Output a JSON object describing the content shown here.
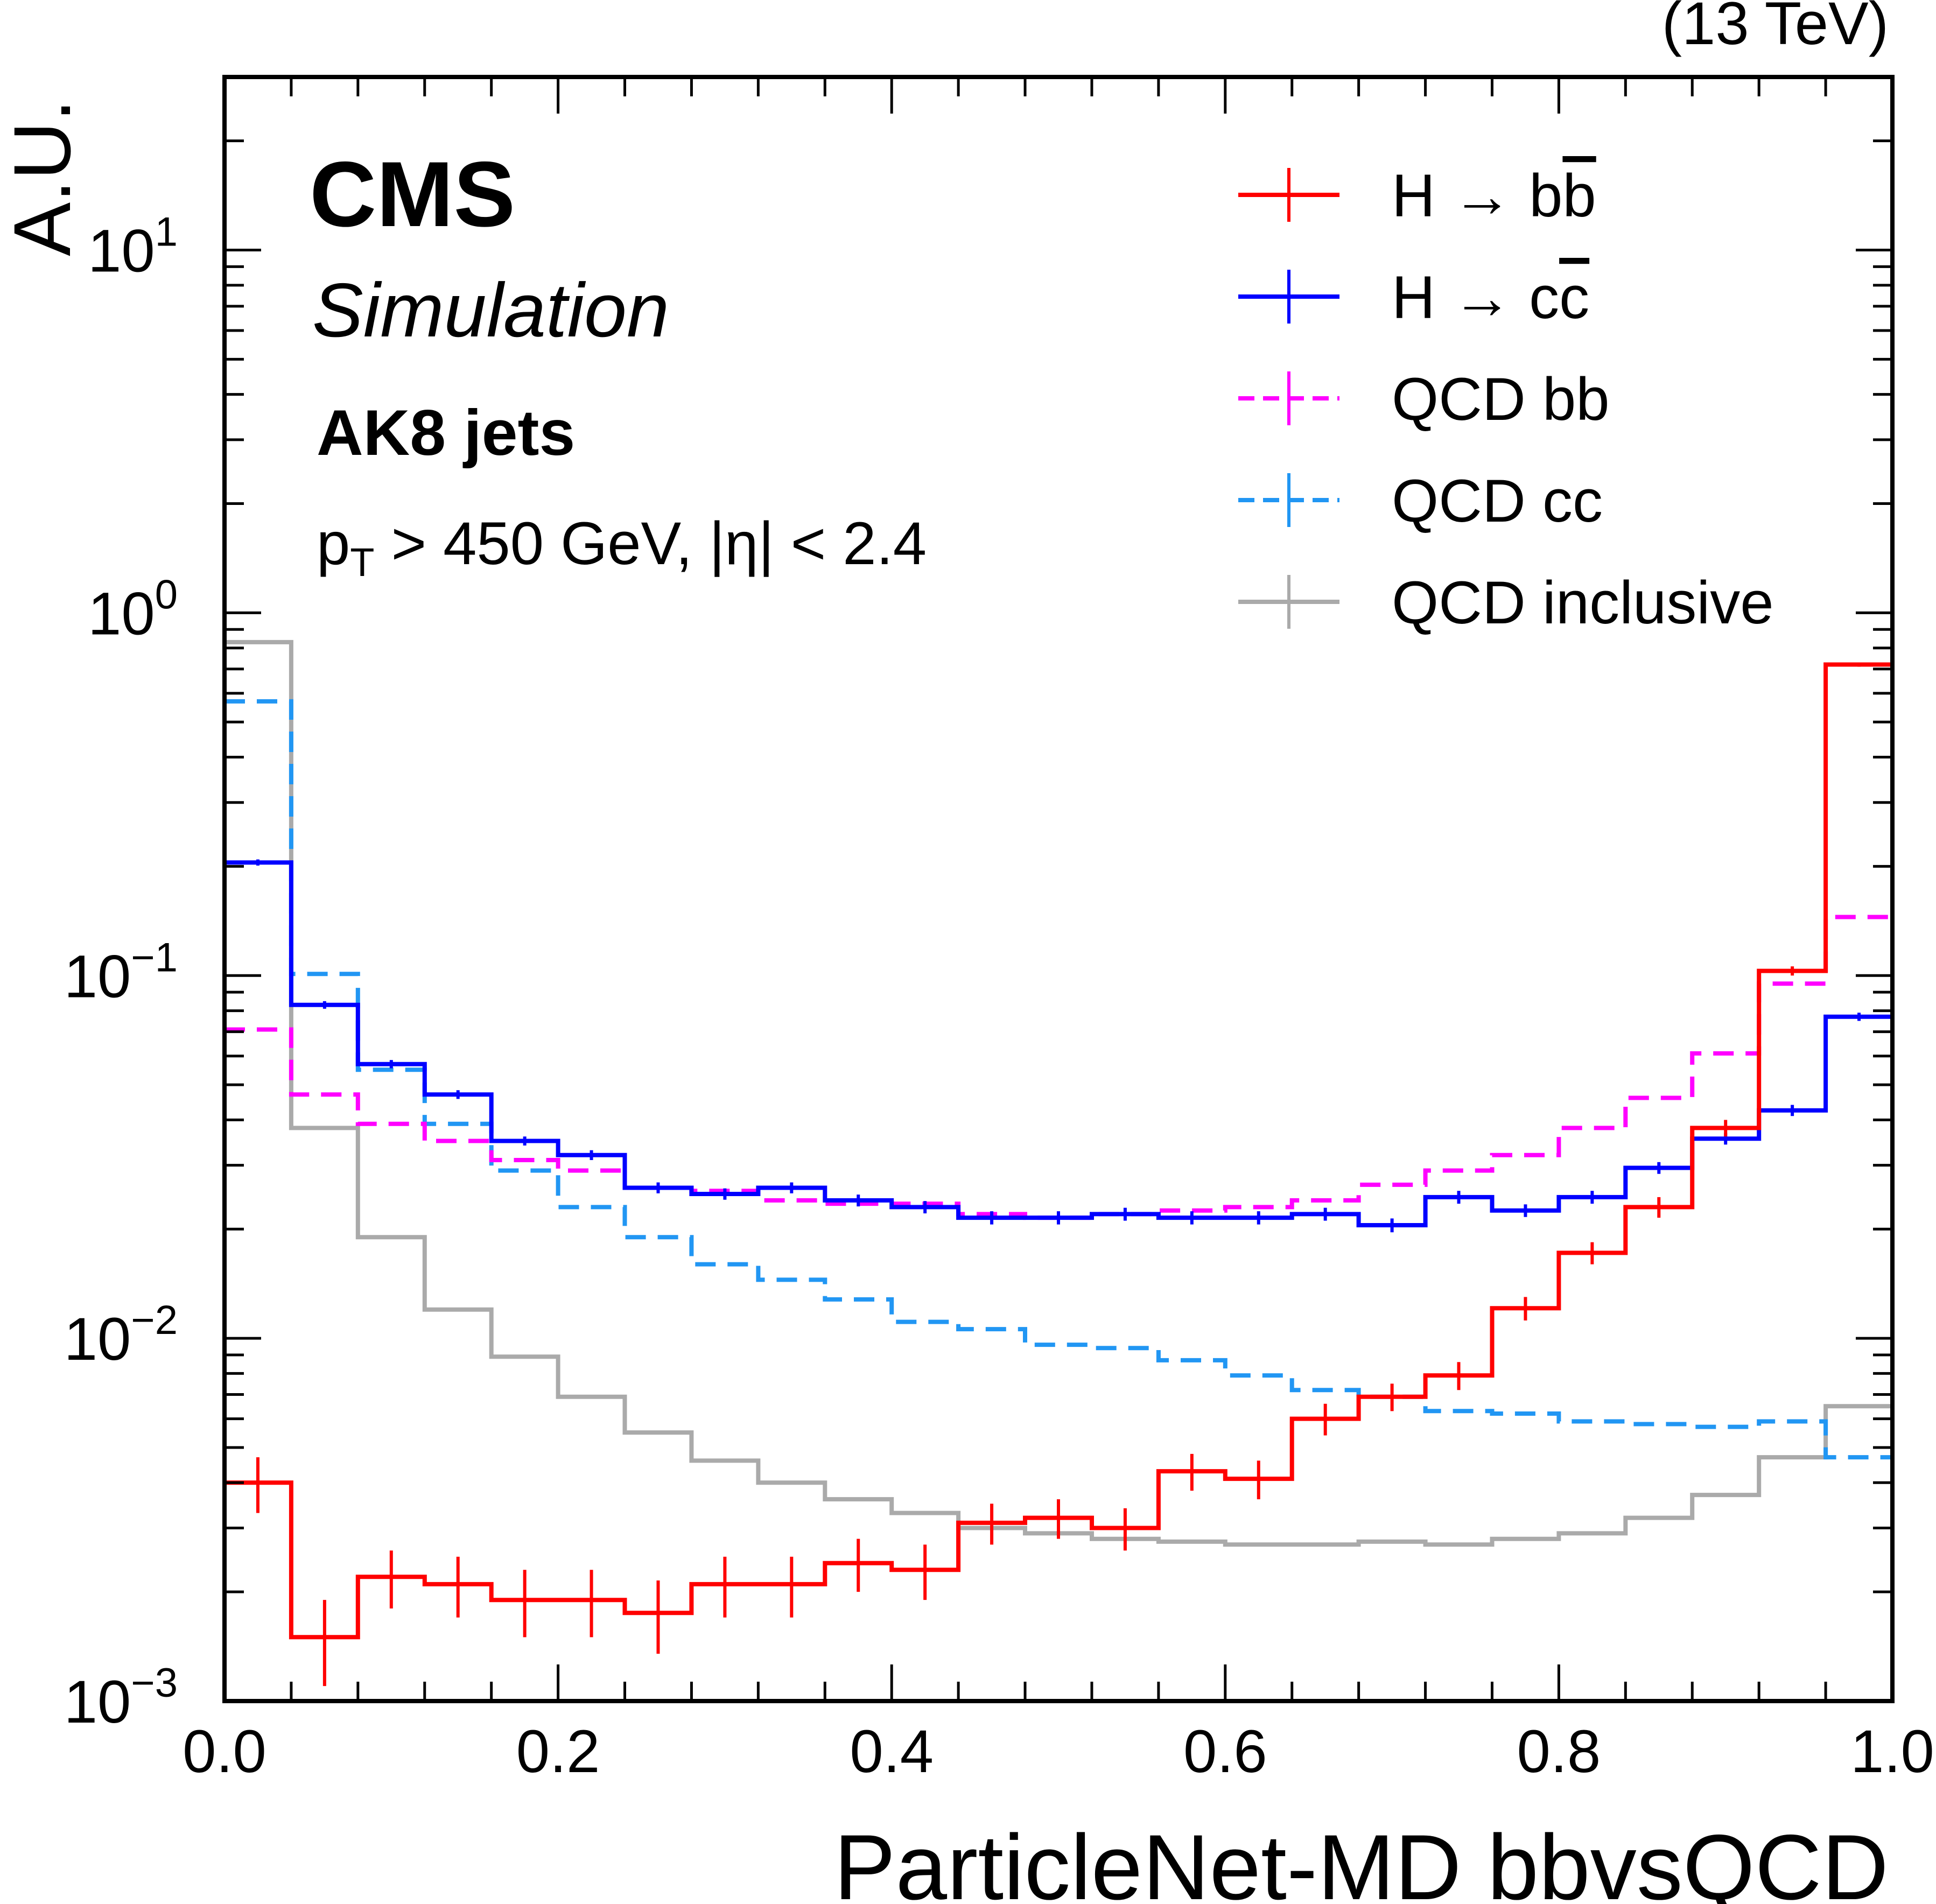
{
  "labels": {
    "energy": "(13 TeV)",
    "experiment": "CMS",
    "status": "Simulation",
    "jet_type": "AK8 jets",
    "selection_pt": "p",
    "selection_pt_sub": "T",
    "selection_rest": " > 450 GeV, |η| < 2.4"
  },
  "colors": {
    "hbb": "#ff0000",
    "hcc": "#0000ff",
    "qcdbb": "#ff00ff",
    "qcdcc": "#2196f3",
    "qcdincl": "#aaaaaa"
  },
  "chart_data": {
    "type": "histogram",
    "title": "",
    "xlabel": "ParticleNet-MD bbvsQCD",
    "ylabel": "A.U.",
    "xlim": [
      0.0,
      1.0
    ],
    "ylim": [
      0.001,
      30
    ],
    "yscale": "log",
    "x_tick_labels": [
      "0.0",
      "0.2",
      "0.4",
      "0.6",
      "0.8",
      "1.0"
    ],
    "y_tick_labels": [
      {
        "base": "10",
        "exp": "−3",
        "value": 0.001
      },
      {
        "base": "10",
        "exp": "−2",
        "value": 0.01
      },
      {
        "base": "10",
        "exp": "−1",
        "value": 0.1
      },
      {
        "base": "10",
        "exp": "0",
        "value": 1
      },
      {
        "base": "10",
        "exp": "1",
        "value": 10
      }
    ],
    "bin_edges": [
      0.0,
      0.04,
      0.08,
      0.12,
      0.16,
      0.2,
      0.24,
      0.28,
      0.32,
      0.36,
      0.4,
      0.44,
      0.48,
      0.52,
      0.56,
      0.6,
      0.64,
      0.68,
      0.72,
      0.76,
      0.8,
      0.84,
      0.88,
      0.92,
      0.96,
      1.0
    ],
    "legend_position": "top-right",
    "series": [
      {
        "key": "hbb",
        "name": "H → bb̅",
        "legend_base": "H → b",
        "legend_bar": "b",
        "style": "solid",
        "errorbars": true,
        "values": [
          0.004,
          0.0015,
          0.0022,
          0.0021,
          0.0019,
          0.0019,
          0.00175,
          0.0021,
          0.0021,
          0.0024,
          0.0023,
          0.0031,
          0.0032,
          0.003,
          0.0043,
          0.0041,
          0.006,
          0.0069,
          0.0079,
          0.0121,
          0.0172,
          0.023,
          0.038,
          0.103,
          0.72
        ],
        "errors": [
          0.0007,
          0.0004,
          0.0004,
          0.0004,
          0.0004,
          0.0004,
          0.0004,
          0.0004,
          0.0004,
          0.0004,
          0.0004,
          0.0004,
          0.0004,
          0.0004,
          0.0005,
          0.0005,
          0.0006,
          0.0006,
          0.0007,
          0.0009,
          0.0012,
          0.0015,
          0.002,
          0.003,
          0.01
        ]
      },
      {
        "key": "hcc",
        "name": "H → cc̅",
        "legend_base": "H → c",
        "legend_bar": "c",
        "style": "solid",
        "errorbars": true,
        "values": [
          0.205,
          0.083,
          0.057,
          0.047,
          0.035,
          0.032,
          0.026,
          0.025,
          0.026,
          0.024,
          0.023,
          0.0215,
          0.0215,
          0.022,
          0.0215,
          0.0215,
          0.022,
          0.0205,
          0.0245,
          0.0225,
          0.0245,
          0.0295,
          0.0355,
          0.0425,
          0.077
        ],
        "errors": [
          0.004,
          0.002,
          0.0015,
          0.0013,
          0.001,
          0.001,
          0.0009,
          0.0009,
          0.0009,
          0.0009,
          0.0009,
          0.0009,
          0.0009,
          0.0009,
          0.0009,
          0.0009,
          0.0009,
          0.0009,
          0.001,
          0.0009,
          0.001,
          0.0011,
          0.0013,
          0.0015,
          0.002
        ]
      },
      {
        "key": "qcdbb",
        "name": "QCD bb",
        "style": "dashed",
        "errorbars": false,
        "values": [
          0.071,
          0.047,
          0.039,
          0.035,
          0.031,
          0.029,
          0.026,
          0.0255,
          0.024,
          0.0235,
          0.0235,
          0.022,
          0.0215,
          0.022,
          0.0225,
          0.023,
          0.024,
          0.0265,
          0.029,
          0.032,
          0.038,
          0.046,
          0.061,
          0.095,
          0.145
        ]
      },
      {
        "key": "qcdcc",
        "name": "QCD cc",
        "style": "dashed",
        "errorbars": false,
        "values": [
          0.57,
          0.101,
          0.055,
          0.039,
          0.029,
          0.023,
          0.019,
          0.016,
          0.0145,
          0.0128,
          0.0111,
          0.0106,
          0.0096,
          0.0094,
          0.0087,
          0.0079,
          0.0072,
          0.0069,
          0.0063,
          0.0062,
          0.0059,
          0.0058,
          0.0057,
          0.0059,
          0.0047
        ]
      },
      {
        "key": "qcdincl",
        "name": "QCD inclusive",
        "style": "solid",
        "errorbars": false,
        "values": [
          0.83,
          0.038,
          0.019,
          0.012,
          0.0089,
          0.0069,
          0.0055,
          0.0046,
          0.004,
          0.0036,
          0.0033,
          0.003,
          0.0029,
          0.0028,
          0.00275,
          0.0027,
          0.0027,
          0.00275,
          0.0027,
          0.0028,
          0.0029,
          0.0032,
          0.0037,
          0.0047,
          0.0065
        ]
      }
    ]
  }
}
